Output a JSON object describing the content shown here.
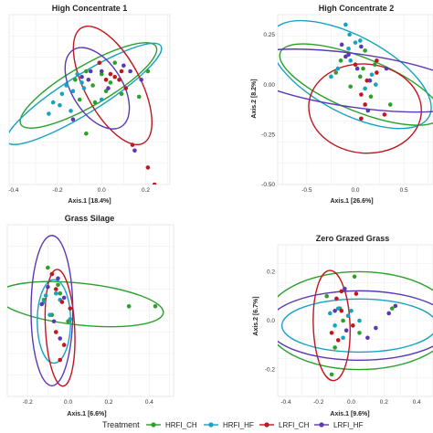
{
  "legend": {
    "title": "Treatment",
    "entries": [
      {
        "label": "HRFI_CH",
        "color": "#2ca02c"
      },
      {
        "label": "HRFI_HF",
        "color": "#17a2c4"
      },
      {
        "label": "LRFI_CH",
        "color": "#c0171f"
      },
      {
        "label": "LRFI_HF",
        "color": "#5b39b5"
      }
    ]
  },
  "chart_data": [
    {
      "type": "scatter",
      "title": "High Concentrate 1",
      "xlabel": "Axis.1   [18.4%]",
      "ylabel": "",
      "xlim": [
        -0.42,
        0.31
      ],
      "ylim": [
        -0.28,
        0.32
      ],
      "xticks": [
        -0.4,
        -0.2,
        0.0,
        0.2
      ],
      "xtick_labels": [
        "-0.4",
        "-0.2",
        "0.0",
        "0.2"
      ],
      "yticks": [],
      "ytick_labels": [],
      "grid": true,
      "ellipses": [
        {
          "series": "HRFI_CH",
          "cx": -0.06,
          "cy": 0.07,
          "rx": 0.31,
          "ry": 0.08,
          "angle_deg": 30
        },
        {
          "series": "HRFI_HF",
          "cx": -0.08,
          "cy": 0.04,
          "rx": 0.36,
          "ry": 0.075,
          "angle_deg": 32
        },
        {
          "series": "LRFI_CH",
          "cx": 0.05,
          "cy": 0.07,
          "rx": 0.26,
          "ry": 0.11,
          "angle_deg": -62
        },
        {
          "series": "LRFI_HF",
          "cx": -0.02,
          "cy": 0.06,
          "rx": 0.18,
          "ry": 0.1,
          "angle_deg": -58
        }
      ],
      "series": [
        {
          "name": "HRFI_CH",
          "points": [
            [
              -0.12,
              0.09
            ],
            [
              -0.07,
              0.12
            ],
            [
              -0.04,
              0.07
            ],
            [
              0.0,
              0.11
            ],
            [
              0.06,
              0.15
            ],
            [
              -0.1,
              0.02
            ],
            [
              0.02,
              0.05
            ],
            [
              0.09,
              0.04
            ],
            [
              0.17,
              0.03
            ],
            [
              -0.03,
              0.01
            ],
            [
              0.04,
              0.08
            ],
            [
              -0.07,
              -0.1
            ],
            [
              0.21,
              0.12
            ]
          ]
        },
        {
          "name": "HRFI_HF",
          "points": [
            [
              -0.22,
              0.01
            ],
            [
              -0.18,
              0.04
            ],
            [
              -0.13,
              0.05
            ],
            [
              -0.16,
              0.07
            ],
            [
              -0.11,
              0.11
            ],
            [
              -0.08,
              0.06
            ],
            [
              -0.24,
              -0.03
            ],
            [
              -0.14,
              -0.02
            ],
            [
              0.0,
              0.02
            ],
            [
              -0.09,
              0.08
            ],
            [
              -0.19,
              0.0
            ]
          ]
        },
        {
          "name": "LRFI_CH",
          "points": [
            [
              0.04,
              0.11
            ],
            [
              0.08,
              0.09
            ],
            [
              0.11,
              0.06
            ],
            [
              -0.01,
              0.15
            ],
            [
              0.02,
              0.09
            ],
            [
              0.14,
              -0.14
            ],
            [
              0.21,
              -0.22
            ],
            [
              0.24,
              -0.28
            ],
            [
              0.09,
              0.12
            ],
            [
              0.06,
              0.1
            ]
          ]
        },
        {
          "name": "LRFI_HF",
          "points": [
            [
              -0.05,
              0.12
            ],
            [
              0.1,
              0.14
            ],
            [
              0.0,
              0.12
            ],
            [
              -0.06,
              0.09
            ],
            [
              0.13,
              0.12
            ],
            [
              0.18,
              0.09
            ],
            [
              -0.13,
              -0.05
            ],
            [
              0.15,
              -0.16
            ],
            [
              -0.09,
              0.1
            ],
            [
              0.03,
              0.06
            ]
          ]
        }
      ]
    },
    {
      "type": "scatter",
      "title": "High Concentrate 2",
      "xlabel": "Axis.1   [26.6%]",
      "ylabel": "Axis.2   [8.2%]",
      "xlim": [
        -0.8,
        0.8
      ],
      "ylim": [
        -0.5,
        0.35
      ],
      "xticks": [
        -0.5,
        0.0,
        0.5
      ],
      "xtick_labels": [
        "-0.5",
        "0.0",
        "0.5"
      ],
      "yticks": [
        0.25,
        0.0,
        -0.25,
        -0.5
      ],
      "ytick_labels": [
        "0.25",
        "0.00",
        "-0.25",
        "-0.50"
      ],
      "grid": true,
      "ellipses": [
        {
          "series": "HRFI_CH",
          "cx": 0.05,
          "cy": 0.0,
          "rx": 0.58,
          "ry": 0.18,
          "angle_deg": -22
        },
        {
          "series": "HRFI_HF",
          "cx": -0.05,
          "cy": 0.05,
          "rx": 0.6,
          "ry": 0.26,
          "angle_deg": -28
        },
        {
          "series": "LRFI_CH",
          "cx": 0.1,
          "cy": -0.12,
          "rx": 0.38,
          "ry": 0.3,
          "angle_deg": -5
        },
        {
          "series": "LRFI_HF",
          "cx": 0.0,
          "cy": 0.02,
          "rx": 0.82,
          "ry": 0.18,
          "angle_deg": -8
        }
      ],
      "series": [
        {
          "name": "HRFI_CH",
          "points": [
            [
              -0.15,
              0.12
            ],
            [
              0.08,
              0.08
            ],
            [
              0.2,
              0.1
            ],
            [
              -0.05,
              -0.01
            ],
            [
              0.16,
              -0.06
            ],
            [
              0.36,
              -0.1
            ],
            [
              0.05,
              0.04
            ],
            [
              -0.2,
              0.06
            ],
            [
              0.1,
              0.17
            ]
          ]
        },
        {
          "name": "HRFI_HF",
          "points": [
            [
              -0.1,
              0.3
            ],
            [
              -0.06,
              0.25
            ],
            [
              0.0,
              0.21
            ],
            [
              -0.18,
              0.08
            ],
            [
              0.1,
              -0.02
            ],
            [
              -0.05,
              0.12
            ],
            [
              0.05,
              0.22
            ],
            [
              -0.07,
              0.18
            ],
            [
              0.17,
              0.05
            ],
            [
              -0.25,
              0.04
            ],
            [
              0.21,
              0.0
            ]
          ]
        },
        {
          "name": "LRFI_CH",
          "points": [
            [
              0.12,
              0.02
            ],
            [
              0.06,
              -0.05
            ],
            [
              0.22,
              0.06
            ],
            [
              0.3,
              -0.15
            ],
            [
              0.1,
              -0.1
            ],
            [
              0.06,
              -0.17
            ],
            [
              0.0,
              0.1
            ],
            [
              0.22,
              0.12
            ]
          ]
        },
        {
          "name": "LRFI_HF",
          "points": [
            [
              -0.07,
              0.15
            ],
            [
              -0.14,
              0.2
            ],
            [
              0.15,
              0.02
            ],
            [
              0.02,
              0.08
            ],
            [
              0.32,
              0.08
            ],
            [
              0.13,
              -0.13
            ],
            [
              -0.1,
              0.14
            ],
            [
              0.06,
              0.19
            ]
          ]
        }
      ]
    },
    {
      "type": "scatter",
      "title": "Grass Silage",
      "xlabel": "Axis.1   [6.6%]",
      "ylabel": "",
      "xlim": [
        -0.3,
        0.52
      ],
      "ylim": [
        -0.4,
        0.4
      ],
      "xticks": [
        -0.2,
        0.0,
        0.2,
        0.4
      ],
      "xtick_labels": [
        "-0.2",
        "0.0",
        "0.2",
        "0.4"
      ],
      "yticks": [],
      "ytick_labels": [],
      "grid": true,
      "ellipses": [
        {
          "series": "HRFI_CH",
          "cx": 0.06,
          "cy": 0.03,
          "rx": 0.4,
          "ry": 0.1,
          "angle_deg": -6
        },
        {
          "series": "HRFI_HF",
          "cx": -0.07,
          "cy": -0.05,
          "rx": 0.08,
          "ry": 0.2,
          "angle_deg": 0
        },
        {
          "series": "LRFI_CH",
          "cx": -0.04,
          "cy": -0.08,
          "rx": 0.07,
          "ry": 0.28,
          "angle_deg": 3
        },
        {
          "series": "LRFI_HF",
          "cx": -0.08,
          "cy": 0.0,
          "rx": 0.1,
          "ry": 0.36,
          "angle_deg": 0
        }
      ],
      "series": [
        {
          "name": "HRFI_CH",
          "points": [
            [
              -0.1,
              0.2
            ],
            [
              -0.05,
              0.12
            ],
            [
              0.3,
              0.02
            ],
            [
              0.43,
              0.02
            ],
            [
              -0.12,
              0.05
            ],
            [
              0.0,
              -0.05
            ],
            [
              -0.04,
              0.08
            ],
            [
              -0.08,
              -0.02
            ]
          ]
        },
        {
          "name": "HRFI_HF",
          "points": [
            [
              -0.11,
              0.07
            ],
            [
              -0.04,
              0.05
            ],
            [
              -0.09,
              -0.02
            ],
            [
              0.01,
              -0.04
            ],
            [
              -0.06,
              0.08
            ],
            [
              -0.12,
              0.04
            ]
          ]
        },
        {
          "name": "LRFI_CH",
          "points": [
            [
              -0.08,
              0.17
            ],
            [
              -0.06,
              0.1
            ],
            [
              -0.03,
              0.04
            ],
            [
              -0.06,
              -0.1
            ],
            [
              -0.02,
              -0.16
            ],
            [
              -0.04,
              -0.23
            ],
            [
              0.01,
              0.01
            ]
          ]
        },
        {
          "name": "LRFI_HF",
          "points": [
            [
              -0.05,
              0.15
            ],
            [
              -0.02,
              0.06
            ],
            [
              -0.1,
              0.11
            ],
            [
              -0.07,
              -0.05
            ],
            [
              -0.13,
              0.03
            ],
            [
              -0.04,
              -0.13
            ]
          ]
        }
      ]
    },
    {
      "type": "scatter",
      "title": "Zero Grazed Grass",
      "xlabel": "Axis.1   [9.6%]",
      "ylabel": "Axis.2   [6.7%]",
      "xlim": [
        -0.45,
        0.5
      ],
      "ylim": [
        -0.31,
        0.31
      ],
      "xticks": [
        -0.4,
        -0.2,
        0.0,
        0.2,
        0.4
      ],
      "xtick_labels": [
        "-0.4",
        "-0.2",
        "0.0",
        "0.2",
        "0.4"
      ],
      "yticks": [
        0.2,
        0.0,
        -0.2
      ],
      "ytick_labels": [
        "0.2",
        "0.0",
        "-0.2"
      ],
      "grid": true,
      "ellipses": [
        {
          "series": "HRFI_CH",
          "cx": 0.05,
          "cy": 0.0,
          "rx": 0.46,
          "ry": 0.24,
          "angle_deg": 0
        },
        {
          "series": "HRFI_HF",
          "cx": 0.05,
          "cy": -0.02,
          "rx": 0.38,
          "ry": 0.13,
          "angle_deg": 0
        },
        {
          "series": "LRFI_CH",
          "cx": -0.12,
          "cy": -0.02,
          "rx": 0.09,
          "ry": 0.27,
          "angle_deg": 2
        },
        {
          "series": "LRFI_HF",
          "cx": 0.05,
          "cy": -0.02,
          "rx": 0.45,
          "ry": 0.17,
          "angle_deg": 0
        }
      ],
      "series": [
        {
          "name": "HRFI_CH",
          "points": [
            [
              -0.15,
              0.1
            ],
            [
              -0.05,
              0.0
            ],
            [
              0.05,
              -0.05
            ],
            [
              -0.1,
              -0.11
            ],
            [
              -0.07,
              0.05
            ],
            [
              -0.12,
              -0.22
            ],
            [
              0.25,
              0.05
            ],
            [
              0.02,
              0.18
            ]
          ]
        },
        {
          "name": "HRFI_HF",
          "points": [
            [
              -0.08,
              0.05
            ],
            [
              -0.02,
              0.02
            ],
            [
              -0.1,
              -0.02
            ],
            [
              0.05,
              0.0
            ],
            [
              -0.05,
              -0.07
            ],
            [
              0.0,
              0.04
            ],
            [
              -0.13,
              0.03
            ]
          ]
        },
        {
          "name": "LRFI_CH",
          "points": [
            [
              -0.09,
              0.09
            ],
            [
              -0.06,
              0.04
            ],
            [
              0.01,
              -0.02
            ],
            [
              -0.12,
              -0.05
            ],
            [
              -0.08,
              -0.08
            ],
            [
              -0.06,
              0.12
            ],
            [
              0.03,
              0.11
            ]
          ]
        },
        {
          "name": "LRFI_HF",
          "points": [
            [
              -0.04,
              0.13
            ],
            [
              -0.1,
              0.04
            ],
            [
              0.15,
              -0.03
            ],
            [
              0.23,
              0.03
            ],
            [
              -0.03,
              -0.04
            ],
            [
              0.1,
              -0.07
            ],
            [
              0.27,
              0.06
            ]
          ]
        }
      ]
    }
  ]
}
